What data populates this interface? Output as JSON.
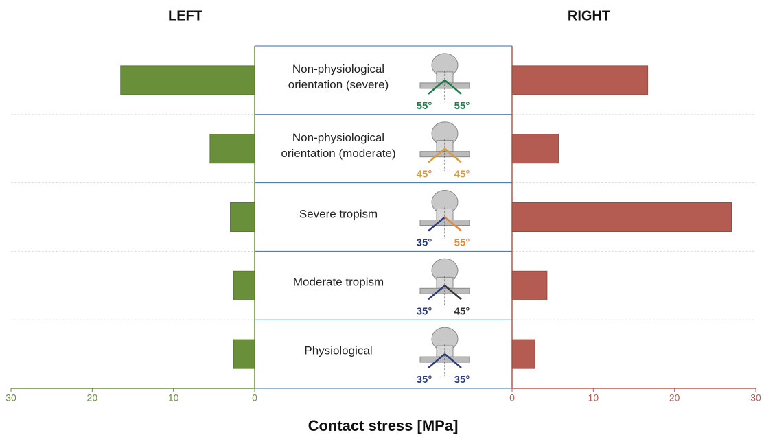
{
  "chart_data": {
    "type": "butterfly",
    "xlabel": "Contact stress [MPa]",
    "categories": [
      "Non-physiological orientation (severe)",
      "Non-physiological orientation (moderate)",
      "Severe tropism",
      "Moderate tropism",
      "Physiological"
    ],
    "xlim": [
      0,
      30
    ],
    "xticks": [
      0,
      10,
      20,
      30
    ],
    "grid": true,
    "series": [
      {
        "name": "LEFT",
        "color": "#6a8f3a",
        "values": [
          16.5,
          5.5,
          3.0,
          2.6,
          2.6
        ]
      },
      {
        "name": "RIGHT",
        "color": "#b45c52",
        "values": [
          16.7,
          5.7,
          27.0,
          4.3,
          2.8
        ]
      }
    ],
    "angle_labels": [
      {
        "left": "55°",
        "right": "55°",
        "left_color": "#1e7b4a",
        "right_color": "#1e7b4a"
      },
      {
        "left": "45°",
        "right": "45°",
        "left_color": "#d99a3a",
        "right_color": "#d99a3a"
      },
      {
        "left": "35°",
        "right": "55°",
        "left_color": "#2b3a7a",
        "right_color": "#e8893a"
      },
      {
        "left": "35°",
        "right": "45°",
        "left_color": "#2b3a7a",
        "right_color": "#333333"
      },
      {
        "left": "35°",
        "right": "35°",
        "left_color": "#2b3a7a",
        "right_color": "#2b3a7a"
      }
    ]
  }
}
